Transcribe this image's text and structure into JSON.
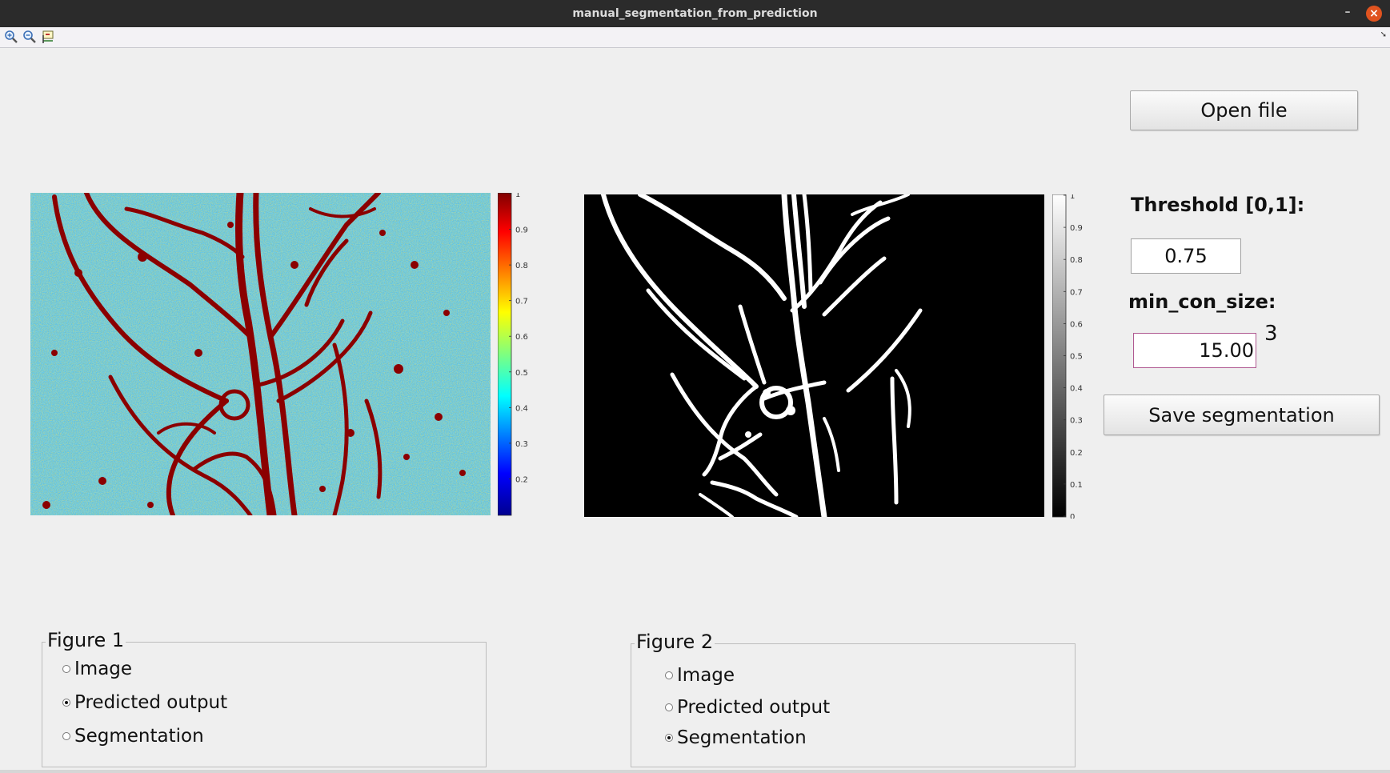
{
  "window": {
    "title": "manual_segmentation_from_prediction",
    "minimize_symbol": "–",
    "close_symbol": "×"
  },
  "toolbar": {
    "icons": [
      "zoom-in-icon",
      "zoom-out-icon",
      "data-cursor-icon"
    ],
    "menu_arrow": "➘"
  },
  "figure1_axes": {
    "image": "predicted-output-jet-colormap",
    "colormap": "jet",
    "colorbar_ticks": [
      "1",
      "0.9",
      "0.8",
      "0.7",
      "0.6",
      "0.5",
      "0.4",
      "0.3",
      "0.2"
    ],
    "colorbar_tick_values": [
      1,
      0.9,
      0.8,
      0.7,
      0.6,
      0.5,
      0.4,
      0.3,
      0.2
    ],
    "colorbar_range": [
      0.1,
      1
    ]
  },
  "figure2_axes": {
    "image": "binary-segmentation-mask",
    "colormap": "gray",
    "colorbar_ticks": [
      "1",
      "0.9",
      "0.8",
      "0.7",
      "0.6",
      "0.5",
      "0.4",
      "0.3",
      "0.2",
      "0.1",
      "0"
    ],
    "colorbar_tick_values": [
      1,
      0.9,
      0.8,
      0.7,
      0.6,
      0.5,
      0.4,
      0.3,
      0.2,
      0.1,
      0
    ],
    "colorbar_range": [
      0,
      1
    ]
  },
  "controls": {
    "open_file_label": "Open file",
    "threshold_label": "Threshold [0,1]:",
    "threshold_value": "0.75",
    "min_con_size_label": "min_con_size:",
    "min_con_size_value": "15.00",
    "min_con_size_hint": "3",
    "save_label": "Save segmentation"
  },
  "figure1_panel": {
    "title": "Figure 1",
    "options": [
      {
        "label": "Image",
        "selected": false
      },
      {
        "label": "Predicted output",
        "selected": true
      },
      {
        "label": "Segmentation",
        "selected": false
      }
    ]
  },
  "figure2_panel": {
    "title": "Figure 2",
    "options": [
      {
        "label": "Image",
        "selected": false
      },
      {
        "label": "Predicted output",
        "selected": false
      },
      {
        "label": "Segmentation",
        "selected": true
      }
    ]
  },
  "colors": {
    "jet_background": "#54b6df",
    "vessel_red": "#8b0000",
    "mask_black": "#000000",
    "mask_white": "#ffffff",
    "titlebar": "#2b2b2b",
    "close_button": "#e0531f"
  }
}
